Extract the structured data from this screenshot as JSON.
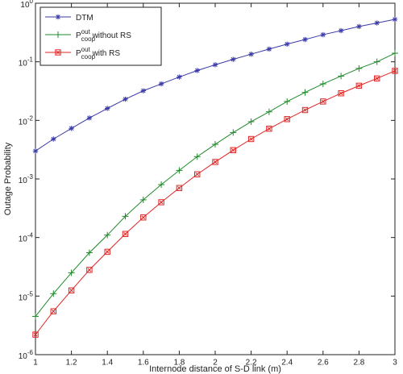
{
  "chart_data": {
    "type": "line",
    "x_label": "Internode distance of S-D link (m)",
    "y_label": "Outage Probability",
    "x": [
      1,
      1.1,
      1.2,
      1.3,
      1.4,
      1.5,
      1.6,
      1.7,
      1.8,
      1.9,
      2,
      2.1,
      2.2,
      2.3,
      2.4,
      2.5,
      2.6,
      2.7,
      2.8,
      2.9,
      3
    ],
    "series": [
      {
        "name": "DTM",
        "color": "#3a3aa8",
        "marker": "star",
        "values": [
          0.003,
          0.0048,
          0.0073,
          0.011,
          0.016,
          0.023,
          0.032,
          0.042,
          0.055,
          0.071,
          0.089,
          0.11,
          0.135,
          0.165,
          0.2,
          0.24,
          0.29,
          0.34,
          0.4,
          0.46,
          0.53
        ]
      },
      {
        "name": "P_coop^out without RS",
        "color": "#1f8a2a",
        "marker": "plus",
        "values": [
          4.5e-06,
          1.1e-05,
          2.5e-05,
          5.5e-05,
          0.00011,
          0.00023,
          0.00044,
          0.0008,
          0.0014,
          0.0024,
          0.0039,
          0.0062,
          0.0095,
          0.014,
          0.021,
          0.03,
          0.042,
          0.057,
          0.077,
          0.1,
          0.14
        ]
      },
      {
        "name": "P_coop^out with RS",
        "color": "#e02424",
        "marker": "square",
        "values": [
          2.2e-06,
          5.5e-06,
          1.25e-05,
          2.8e-05,
          5.7e-05,
          0.000115,
          0.00022,
          0.0004,
          0.0007,
          0.0012,
          0.00195,
          0.0031,
          0.0048,
          0.0072,
          0.0105,
          0.015,
          0.021,
          0.029,
          0.039,
          0.052,
          0.07
        ]
      }
    ],
    "xlim": [
      1,
      3
    ],
    "xticks": [
      1,
      1.2,
      1.4,
      1.6,
      1.8,
      2,
      2.2,
      2.4,
      2.6,
      2.8,
      3
    ],
    "ylim": [
      1e-06,
      1
    ],
    "yticks": [
      {
        "value": 1e-06,
        "label": "10^-6"
      },
      {
        "value": 1e-05,
        "label": "10^-5"
      },
      {
        "value": 0.0001,
        "label": "10^-4"
      },
      {
        "value": 0.001,
        "label": "10^-3"
      },
      {
        "value": 0.01,
        "label": "10^-2"
      },
      {
        "value": 0.1,
        "label": "10^-1"
      },
      {
        "value": 1,
        "label": "10^0"
      }
    ],
    "y_scale": "log",
    "grid": false,
    "legend": "top-left"
  }
}
